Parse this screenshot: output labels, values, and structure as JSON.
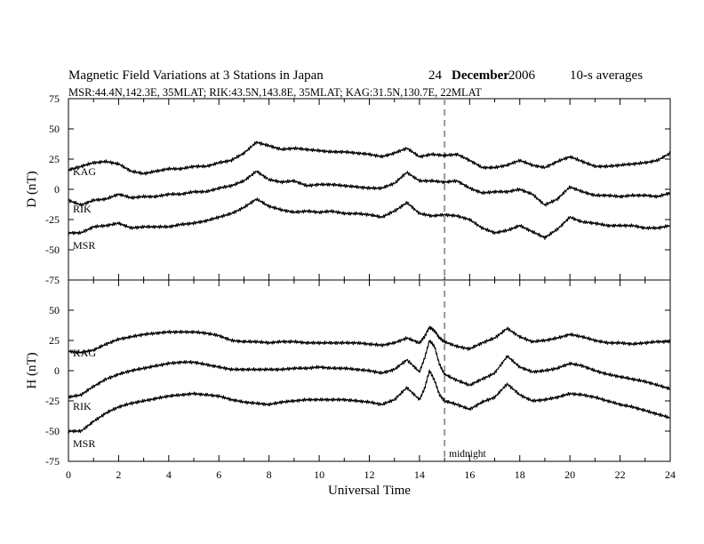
{
  "header": {
    "title": "Magnetic Field Variations at 3 Stations in Japan",
    "day": "24",
    "month": "December",
    "year": "2006",
    "averaging": "10-s averages",
    "stations_line": "MSR:44.4N,142.3E, 35MLAT;  RIK:43.5N,143.8E, 35MLAT;  KAG:31.5N,130.7E, 22MLAT"
  },
  "colors": {
    "trace": "#000000",
    "axis": "#000000",
    "midnight_marker": "#999999"
  },
  "chart_data": [
    {
      "type": "line",
      "panel": "D",
      "ylabel": "D (nT)",
      "xlabel": "",
      "xlim": [
        0,
        24
      ],
      "ylim": [
        -75,
        75
      ],
      "yticks": [
        75,
        50,
        25,
        0,
        -25,
        -50,
        -75
      ],
      "x": [
        0,
        0.5,
        1,
        1.5,
        2,
        2.5,
        3,
        3.5,
        4,
        4.5,
        5,
        5.5,
        6,
        6.5,
        7,
        7.5,
        8,
        8.5,
        9,
        9.5,
        10,
        10.5,
        11,
        11.5,
        12,
        12.5,
        13,
        13.5,
        14,
        14.5,
        15,
        15.5,
        16,
        16.5,
        17,
        17.5,
        18,
        18.5,
        19,
        19.5,
        20,
        20.5,
        21,
        21.5,
        22,
        22.5,
        23,
        23.5,
        24
      ],
      "series": [
        {
          "name": "KAG",
          "values": [
            16,
            19,
            22,
            23,
            21,
            15,
            13,
            15,
            17,
            17,
            19,
            19,
            22,
            24,
            30,
            39,
            36,
            33,
            34,
            33,
            32,
            31,
            31,
            30,
            29,
            27,
            30,
            34,
            27,
            29,
            28,
            29,
            24,
            18,
            18,
            20,
            24,
            20,
            18,
            23,
            27,
            23,
            19,
            19,
            20,
            21,
            22,
            24,
            30
          ]
        },
        {
          "name": "RIK",
          "values": [
            -9,
            -13,
            -9,
            -8,
            -4,
            -7,
            -6,
            -6,
            -4,
            -4,
            -2,
            -2,
            1,
            3,
            7,
            15,
            8,
            6,
            7,
            3,
            4,
            4,
            3,
            2,
            1,
            1,
            5,
            14,
            7,
            7,
            6,
            7,
            1,
            -3,
            -2,
            -2,
            0,
            -4,
            -13,
            -8,
            2,
            -2,
            -5,
            -5,
            -6,
            -5,
            -5,
            -6,
            -3
          ]
        },
        {
          "name": "MSR",
          "values": [
            -36,
            -36,
            -31,
            -30,
            -28,
            -32,
            -31,
            -31,
            -31,
            -29,
            -28,
            -26,
            -23,
            -20,
            -15,
            -8,
            -14,
            -17,
            -19,
            -18,
            -19,
            -18,
            -20,
            -20,
            -21,
            -23,
            -18,
            -11,
            -20,
            -22,
            -21,
            -22,
            -25,
            -32,
            -36,
            -34,
            -30,
            -35,
            -40,
            -33,
            -23,
            -27,
            -28,
            -30,
            -30,
            -30,
            -32,
            -32,
            -30
          ]
        }
      ]
    },
    {
      "type": "line",
      "panel": "H",
      "ylabel": "H (nT)",
      "xlabel": "Universal Time",
      "xlim": [
        0,
        24
      ],
      "ylim": [
        -75,
        75
      ],
      "yticks": [
        75,
        50,
        25,
        0,
        -25,
        -50,
        -75
      ],
      "xticks": [
        0,
        2,
        4,
        6,
        8,
        10,
        12,
        14,
        16,
        18,
        20,
        22,
        24
      ],
      "x": [
        0,
        0.5,
        1,
        1.5,
        2,
        2.5,
        3,
        3.5,
        4,
        4.5,
        5,
        5.5,
        6,
        6.5,
        7,
        7.5,
        8,
        8.5,
        9,
        9.5,
        10,
        10.5,
        11,
        11.5,
        12,
        12.5,
        13,
        13.5,
        14,
        14.2,
        14.4,
        14.6,
        14.8,
        15,
        15.5,
        16,
        16.5,
        17,
        17.5,
        18,
        18.5,
        19,
        19.5,
        20,
        20.5,
        21,
        21.5,
        22,
        22.5,
        23,
        23.5,
        24
      ],
      "series": [
        {
          "name": "KAG",
          "values": [
            16,
            15,
            17,
            22,
            26,
            28,
            30,
            31,
            32,
            32,
            32,
            31,
            29,
            25,
            24,
            24,
            23,
            24,
            24,
            23,
            23,
            23,
            23,
            23,
            22,
            21,
            23,
            27,
            23,
            28,
            36,
            33,
            27,
            24,
            20,
            18,
            23,
            27,
            35,
            28,
            24,
            25,
            27,
            30,
            28,
            25,
            23,
            23,
            22,
            23,
            24,
            24
          ]
        },
        {
          "name": "RIK",
          "values": [
            -22,
            -20,
            -13,
            -7,
            -3,
            0,
            2,
            4,
            6,
            7,
            7,
            5,
            3,
            1,
            1,
            1,
            1,
            1,
            2,
            2,
            3,
            2,
            2,
            1,
            0,
            -2,
            1,
            9,
            -1,
            10,
            25,
            20,
            5,
            -3,
            -8,
            -12,
            -7,
            -2,
            12,
            3,
            -1,
            0,
            2,
            6,
            4,
            0,
            -3,
            -5,
            -7,
            -9,
            -12,
            -15
          ]
        },
        {
          "name": "MSR",
          "values": [
            -50,
            -50,
            -42,
            -35,
            -30,
            -27,
            -25,
            -23,
            -21,
            -20,
            -19,
            -20,
            -21,
            -24,
            -26,
            -27,
            -28,
            -26,
            -25,
            -24,
            -24,
            -24,
            -24,
            -25,
            -26,
            -28,
            -24,
            -14,
            -24,
            -15,
            0,
            -8,
            -20,
            -25,
            -28,
            -32,
            -26,
            -22,
            -11,
            -20,
            -25,
            -24,
            -22,
            -19,
            -20,
            -22,
            -25,
            -28,
            -30,
            -33,
            -36,
            -39
          ]
        }
      ]
    }
  ],
  "annotations": {
    "midnight_label": "midnight",
    "midnight_ut": 15
  }
}
